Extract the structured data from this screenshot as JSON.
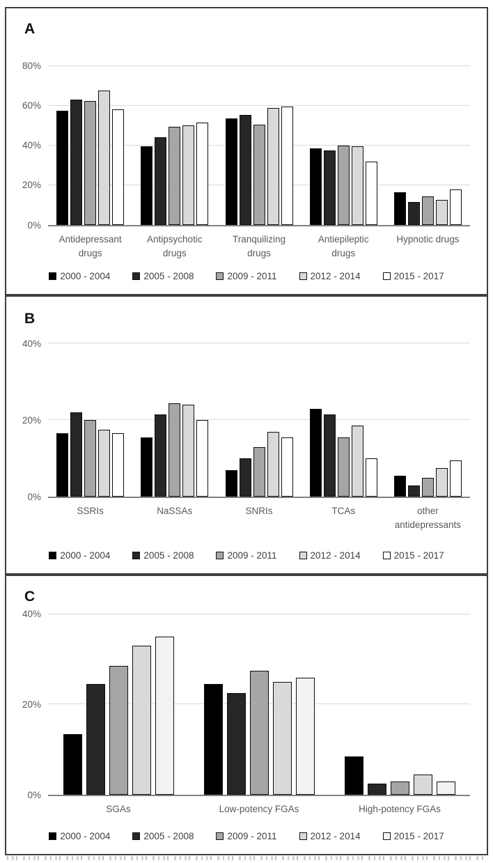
{
  "figure_colors": {
    "panel_border": "#3f3f3f",
    "gridline": "#d9d9d9",
    "axis_line": "#808080",
    "tick_text": "#595959",
    "legend_text": "#404040"
  },
  "chart_data": [
    {
      "type": "bar",
      "panel": "A",
      "title": "",
      "xlabel": "",
      "ylabel": "",
      "grid": true,
      "legend_position": "bottom",
      "ylim": [
        0,
        90
      ],
      "ytick_values": [
        0,
        20,
        40,
        60,
        80
      ],
      "categories": [
        "Antidepressant drugs",
        "Antipsychotic drugs",
        "Tranquilizing drugs",
        "Antiepileptic drugs",
        "Hypnotic drugs"
      ],
      "series": [
        {
          "name": "2000 - 2004",
          "color": "#000000",
          "values": [
            57.5,
            39.5,
            53.5,
            38.5,
            16.5
          ]
        },
        {
          "name": "2005 - 2008",
          "color": "#262626",
          "values": [
            63.0,
            44.0,
            55.5,
            37.5,
            11.5
          ]
        },
        {
          "name": "2009 - 2011",
          "color": "#a6a6a6",
          "values": [
            62.5,
            49.5,
            50.5,
            40.0,
            14.5
          ]
        },
        {
          "name": "2012 - 2014",
          "color": "#d9d9d9",
          "values": [
            67.5,
            50.0,
            59.0,
            39.5,
            12.5
          ]
        },
        {
          "name": "2015 - 2017",
          "color": "#ffffff",
          "values": [
            58.0,
            51.5,
            59.5,
            32.0,
            18.0
          ]
        }
      ]
    },
    {
      "type": "bar",
      "panel": "B",
      "title": "",
      "xlabel": "",
      "ylabel": "",
      "grid": true,
      "legend_position": "bottom",
      "ylim": [
        0,
        47
      ],
      "ytick_values": [
        0,
        20,
        40
      ],
      "categories": [
        "SSRIs",
        "NaSSAs",
        "SNRIs",
        "TCAs",
        "other antidepressants"
      ],
      "series": [
        {
          "name": "2000 - 2004",
          "color": "#000000",
          "values": [
            16.5,
            15.5,
            7.0,
            23.0,
            5.5
          ]
        },
        {
          "name": "2005 - 2008",
          "color": "#262626",
          "values": [
            22.0,
            21.5,
            10.0,
            21.5,
            3.0
          ]
        },
        {
          "name": "2009 - 2011",
          "color": "#a6a6a6",
          "values": [
            20.0,
            24.5,
            13.0,
            15.5,
            5.0
          ]
        },
        {
          "name": "2012 - 2014",
          "color": "#d9d9d9",
          "values": [
            17.5,
            24.0,
            17.0,
            18.5,
            7.5
          ]
        },
        {
          "name": "2015 - 2017",
          "color": "#ffffff",
          "values": [
            16.5,
            20.0,
            15.5,
            10.0,
            9.5
          ]
        }
      ]
    },
    {
      "type": "bar",
      "panel": "C",
      "title": "",
      "xlabel": "",
      "ylabel": "",
      "grid": true,
      "legend_position": "bottom",
      "ylim": [
        0,
        44
      ],
      "ytick_values": [
        0,
        20,
        40
      ],
      "categories": [
        "SGAs",
        "Low-potency FGAs",
        "High-potency FGAs"
      ],
      "series": [
        {
          "name": "2000 - 2004",
          "color": "#000000",
          "values": [
            13.5,
            24.5,
            8.5
          ]
        },
        {
          "name": "2005 - 2008",
          "color": "#262626",
          "values": [
            24.5,
            22.5,
            2.5
          ]
        },
        {
          "name": "2009 - 2011",
          "color": "#a6a6a6",
          "values": [
            28.5,
            27.5,
            3.0
          ]
        },
        {
          "name": "2012 - 2014",
          "color": "#d9d9d9",
          "values": [
            33.0,
            25.0,
            4.5
          ]
        },
        {
          "name": "2015 - 2017",
          "color": "#f2f2f2",
          "values": [
            35.0,
            26.0,
            3.0
          ]
        }
      ]
    }
  ]
}
